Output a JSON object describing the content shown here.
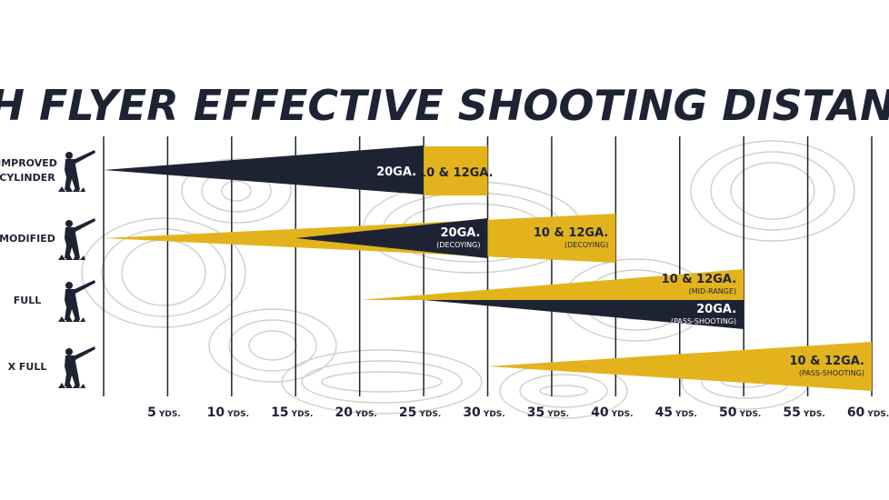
{
  "chart_data": {
    "type": "range-cone",
    "title": "HIGH FLYER EFFECTIVE SHOOTING DISTANCES",
    "x_unit": "YDS.",
    "ticks": [
      5,
      10,
      15,
      20,
      25,
      30,
      35,
      40,
      45,
      50,
      55,
      60
    ],
    "xlim": [
      0,
      60
    ],
    "colors": {
      "dark": "#1e2334",
      "gold": "#e2b31c",
      "grid": "#1e2334",
      "topo": "#cfcfcf"
    },
    "rows": [
      {
        "label_lines": [
          "IMPROVED",
          "CYLINDER"
        ],
        "cones": [
          {
            "gauge": "20GA.",
            "note": "",
            "color": "dark",
            "start": 0,
            "end": 25
          },
          {
            "gauge": "10 & 12GA.",
            "note": "",
            "color": "gold",
            "start": 25,
            "end": 30,
            "block": true
          }
        ]
      },
      {
        "label_lines": [
          "MODIFIED"
        ],
        "cones": [
          {
            "gauge": "10 & 12GA.",
            "note": "(DECOYING)",
            "color": "gold",
            "start": 0,
            "end": 40
          },
          {
            "gauge": "20GA.",
            "note": "(DECOYING)",
            "color": "dark",
            "start": 15,
            "end": 30
          }
        ]
      },
      {
        "label_lines": [
          "FULL"
        ],
        "cones": [
          {
            "gauge": "10 & 12GA.",
            "note": "(MID-RANGE)",
            "color": "gold",
            "start": 20,
            "end": 50,
            "half": "top"
          },
          {
            "gauge": "20GA.",
            "note": "(PASS-SHOOTING)",
            "color": "dark",
            "start": 25,
            "end": 50,
            "half": "bottom"
          }
        ]
      },
      {
        "label_lines": [
          "X FULL"
        ],
        "cones": [
          {
            "gauge": "10 & 12GA.",
            "note": "(PASS-SHOOTING)",
            "color": "gold",
            "start": 30,
            "end": 60
          }
        ]
      }
    ]
  }
}
